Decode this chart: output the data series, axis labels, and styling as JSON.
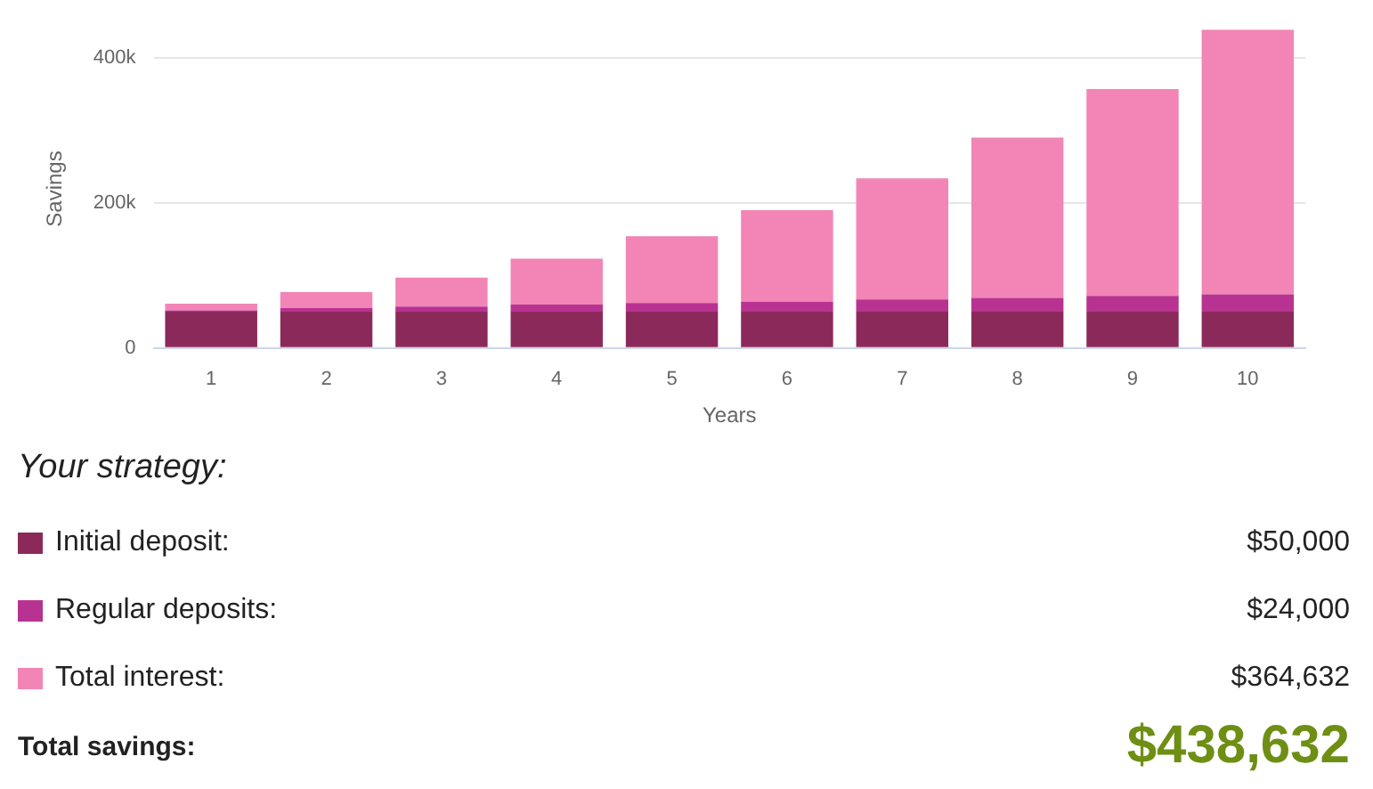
{
  "chart_data": {
    "type": "bar",
    "stacked": true,
    "xlabel": "Years",
    "ylabel": "Savings",
    "categories": [
      "1",
      "2",
      "3",
      "4",
      "5",
      "6",
      "7",
      "8",
      "9",
      "10"
    ],
    "series": [
      {
        "name": "Initial deposit:",
        "color": "#8b2a5a",
        "values": [
          50000,
          50000,
          50000,
          50000,
          50000,
          50000,
          50000,
          50000,
          50000,
          50000
        ]
      },
      {
        "name": "Regular deposits:",
        "color": "#b83291",
        "values": [
          2000,
          5000,
          7000,
          10000,
          12000,
          14000,
          17000,
          19000,
          22000,
          24000
        ]
      },
      {
        "name": "Total interest:",
        "color": "#f285b6",
        "values": [
          9000,
          22000,
          40000,
          63000,
          92000,
          126000,
          167000,
          221000,
          285000,
          365000
        ]
      }
    ],
    "ylim": [
      0,
      439000
    ],
    "yticks": [
      {
        "value": 0,
        "label": "0"
      },
      {
        "value": 200000,
        "label": "200k"
      },
      {
        "value": 400000,
        "label": "400k"
      }
    ],
    "grid": "y",
    "legend": "bottom",
    "annotations": [
      "Your strategy:",
      "$50,000",
      "$24,000",
      "$364,632",
      "Total savings:",
      "$438,632"
    ]
  }
}
